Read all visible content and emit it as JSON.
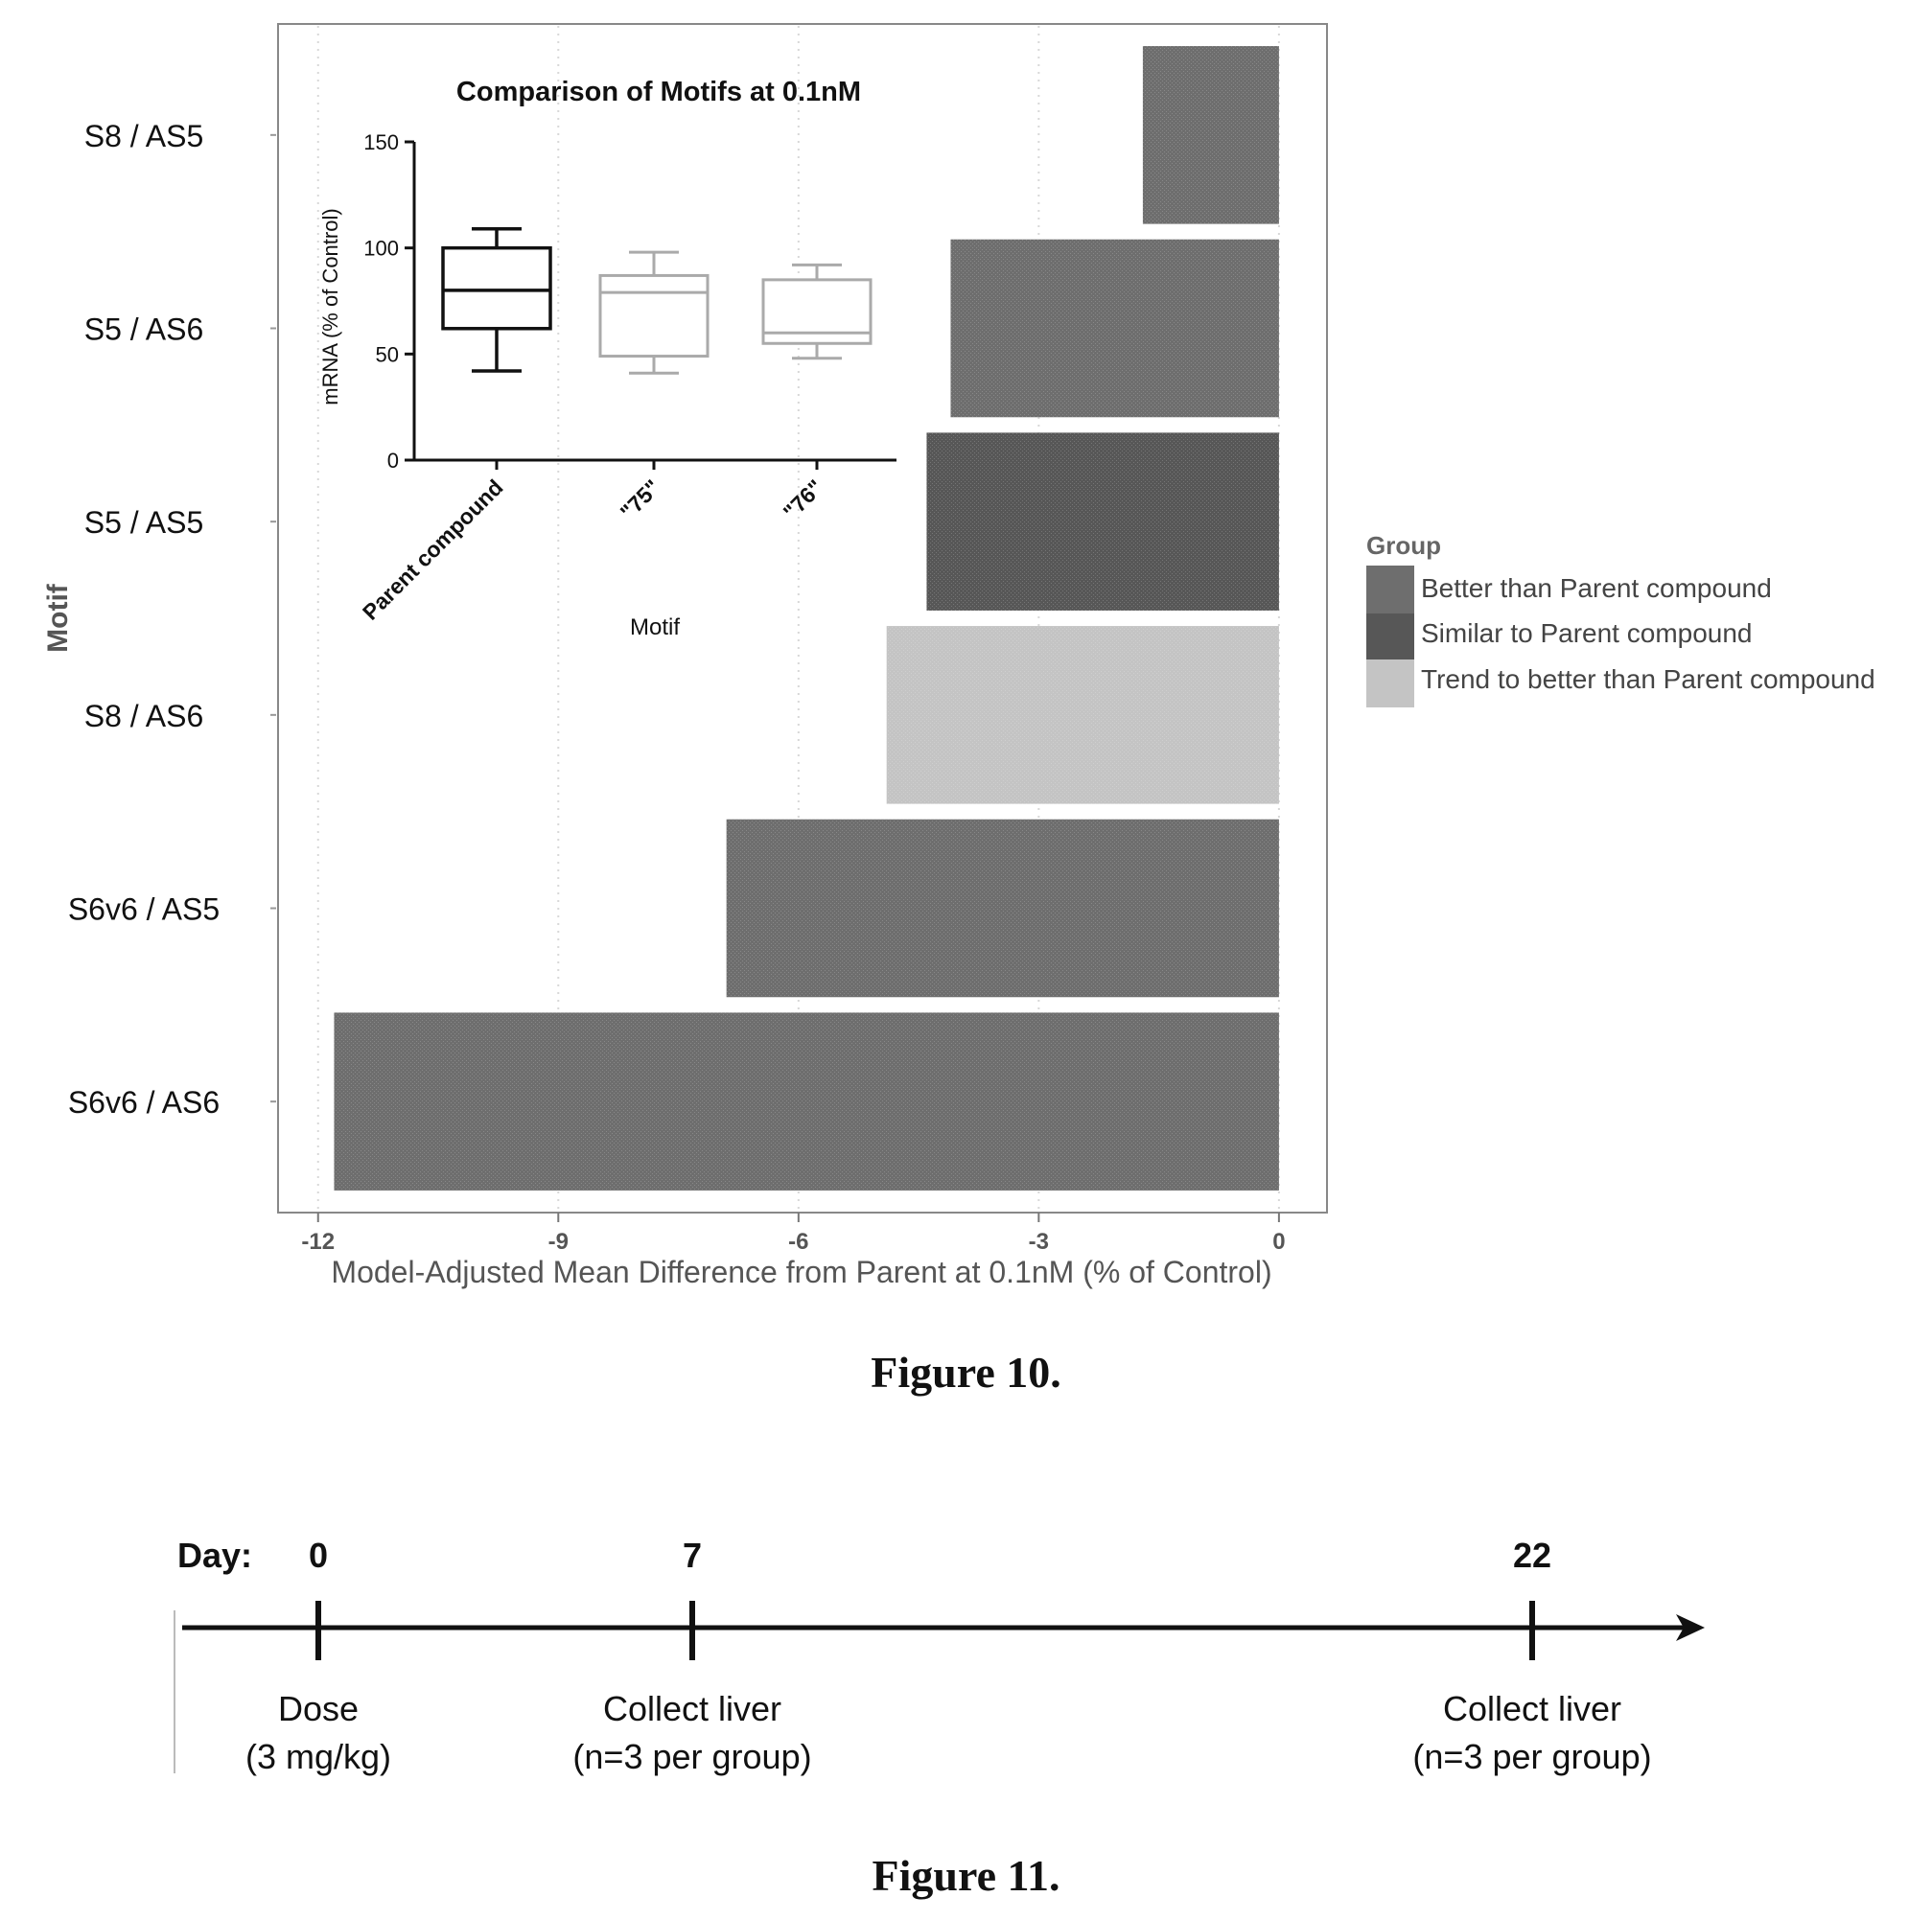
{
  "figure10": {
    "caption": "Figure 10.",
    "chart_data": [
      {
        "type": "bar",
        "orientation": "horizontal",
        "categories": [
          "S8 / AS5",
          "S5 / AS6",
          "S5 / AS5",
          "S8 / AS6",
          "S6v6 / AS5",
          "S6v6 / AS6"
        ],
        "values": [
          -1.7,
          -4.1,
          -4.4,
          -4.9,
          -6.9,
          -11.8
        ],
        "groups": [
          "Better than Parent compound",
          "Better than Parent compound",
          "Similar to Parent compound",
          "Trend to better than Parent compound",
          "Better than Parent compound",
          "Better than Parent compound"
        ],
        "xlabel": "Model-Adjusted Mean Difference from Parent at 0.1nM (% of Control)",
        "ylabel": "Motif",
        "xlim": [
          -12.5,
          0.6
        ],
        "xticks": [
          "-12",
          "-9",
          "-6",
          "-3",
          "0"
        ],
        "legend": {
          "title": "Group",
          "position": "right",
          "entries": [
            {
              "label": "Better than Parent compound",
              "color": "#6e6e6e"
            },
            {
              "label": "Similar to Parent compound",
              "color": "#575757"
            },
            {
              "label": "Trend to better than Parent compound",
              "color": "#c4c4c4"
            }
          ]
        },
        "grid": true
      },
      {
        "type": "box",
        "title": "Comparison of Motifs at 0.1nM",
        "xlabel": "Motif",
        "ylabel": "mRNA (% of Control)",
        "ylim": [
          0,
          150
        ],
        "yticks": [
          "0",
          "50",
          "100",
          "150"
        ],
        "categories": [
          "Parent compound",
          "\"75\"",
          "\"76\""
        ],
        "boxes": [
          {
            "min": 42,
            "q1": 62,
            "median": 80,
            "q3": 100,
            "max": 109
          },
          {
            "min": 41,
            "q1": 49,
            "median": 79,
            "q3": 87,
            "max": 98
          },
          {
            "min": 48,
            "q1": 55,
            "median": 60,
            "q3": 85,
            "max": 92
          }
        ]
      }
    ]
  },
  "figure11": {
    "caption": "Figure 11.",
    "day_label": "Day:",
    "events": [
      {
        "day": "0",
        "line1": "Dose",
        "line2": "(3 mg/kg)"
      },
      {
        "day": "7",
        "line1": "Collect liver",
        "line2": "(n=3 per group)"
      },
      {
        "day": "22",
        "line1": "Collect liver",
        "line2": "(n=3 per group)"
      }
    ]
  }
}
